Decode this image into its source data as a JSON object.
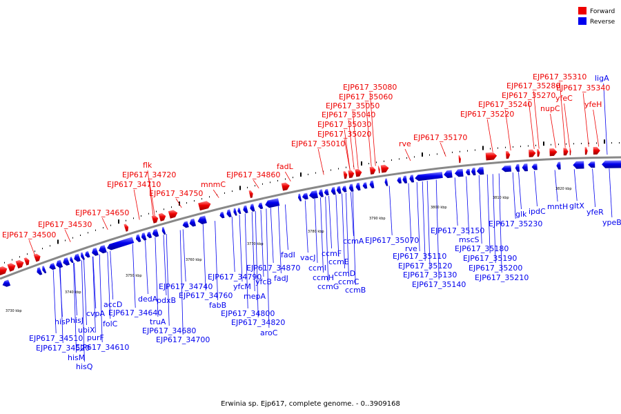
{
  "legend": {
    "forward": {
      "label": "Forward",
      "color": "#ee0000"
    },
    "reverse": {
      "label": "Reverse",
      "color": "#0000ee"
    }
  },
  "backbone_color": "#888888",
  "caption": "Erwinia sp. Ejp617, complete genome. - 0..3909168",
  "ticks": [
    "3730 kbp",
    "3740 kbp",
    "3750 kbp",
    "3760 kbp",
    "3770 kbp",
    "3780 kbp",
    "3790 kbp",
    "3800 kbp",
    "3810 kbp",
    "3820 kbp"
  ],
  "forward_labels": [
    "EJP617_34500",
    "EJP617_34530",
    "EJP617_34650",
    "EJP617_34710",
    "EJP617_34720",
    "flk",
    "EJP617_34750",
    "mnmC",
    "EJP617_34860",
    "fadL",
    "EJP617_35010",
    "EJP617_35020",
    "EJP617_35030",
    "EJP617_35040",
    "EJP617_35050",
    "EJP617_35060",
    "EJP617_35080",
    "rve",
    "EJP617_35170",
    "EJP617_35220",
    "EJP617_35240",
    "EJP617_35270",
    "EJP617_35280",
    "EJP617_35310",
    "nupC",
    "yfeC",
    "EJP617_35340",
    "yfeH"
  ],
  "reverse_labels": [
    "hisP",
    "EJP617_34510",
    "EJP617_34520",
    "hisJ",
    "hisM",
    "hisQ",
    "ubiX",
    "cvpA",
    "purF",
    "EJP617_34610",
    "folC",
    "accD",
    "EJP617_34640",
    "truA",
    "EJP617_34680",
    "dedA",
    "pdxB",
    "EJP617_34700",
    "EJP617_34740",
    "EJP617_34760",
    "fabB",
    "EJP617_34790",
    "EJP617_34800",
    "yfcM",
    "EJP617_34820",
    "mepA",
    "aroC",
    "yfcB",
    "EJP617_34870",
    "fadI",
    "fadJ",
    "vacJ",
    "ccmI",
    "ccmH",
    "ccmG",
    "ccmF",
    "ccmE",
    "ccmD",
    "ccmC",
    "ccmB",
    "ccmA",
    "EJP617_35070",
    "rve",
    "EJP617_35110",
    "EJP617_35120",
    "EJP617_35130",
    "EJP617_35140",
    "EJP617_35150",
    "mscS",
    "EJP617_35180",
    "EJP617_35190",
    "EJP617_35200",
    "EJP617_35210",
    "EJP617_35230",
    "glk",
    "ipdC",
    "mntH",
    "gltX",
    "yfeR",
    "ypeB",
    "ligA"
  ]
}
